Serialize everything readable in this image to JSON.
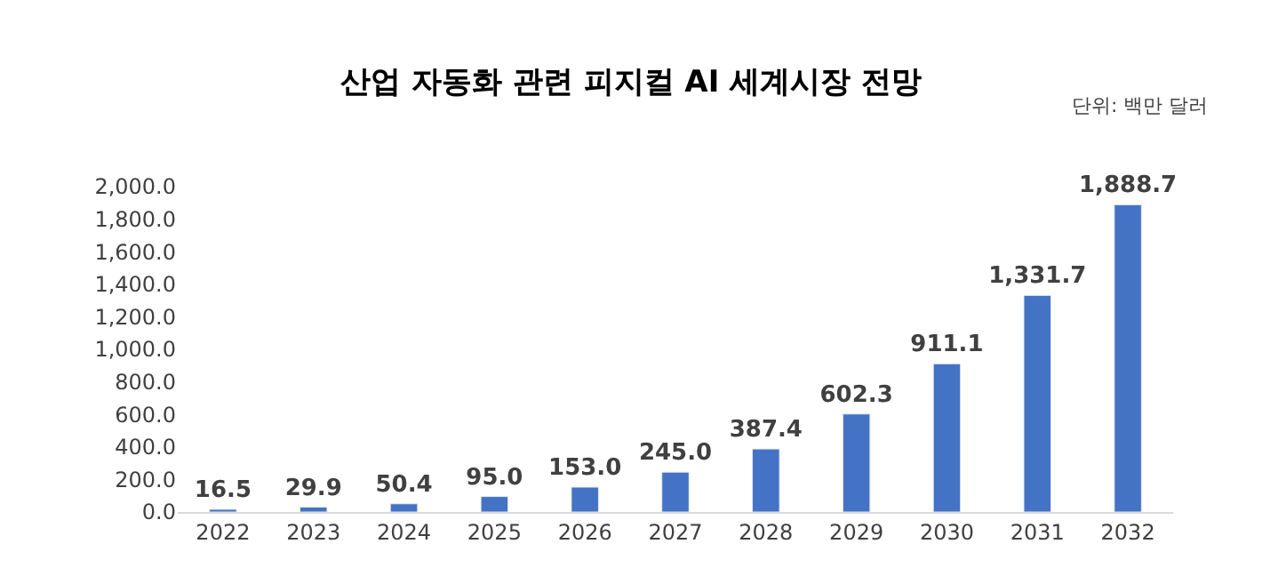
{
  "chart_data": {
    "type": "bar",
    "title": "산업 자동화 관련 피지컬 AI 세계시장 전망",
    "annotations": [
      "단위: 백만 달러"
    ],
    "categories": [
      "2022",
      "2023",
      "2024",
      "2025",
      "2026",
      "2027",
      "2028",
      "2029",
      "2030",
      "2031",
      "2032"
    ],
    "values": [
      16.5,
      29.9,
      50.4,
      95.0,
      153.0,
      245.0,
      387.4,
      602.3,
      911.1,
      1331.7,
      1888.7
    ],
    "value_labels": [
      "16.5",
      "29.9",
      "50.4",
      "95.0",
      "153.0",
      "245.0",
      "387.4",
      "602.3",
      "911.1",
      "1,331.7",
      "1,888.7"
    ],
    "color": "#4472c4",
    "ylim": [
      0,
      2000
    ],
    "yticks": [
      {
        "value": 0,
        "label": "0.0"
      },
      {
        "value": 200,
        "label": "200.0"
      },
      {
        "value": 400,
        "label": "400.0"
      },
      {
        "value": 600,
        "label": "600.0"
      },
      {
        "value": 800,
        "label": "800.0"
      },
      {
        "value": 1000,
        "label": "1,000.0"
      },
      {
        "value": 1200,
        "label": "1,200.0"
      },
      {
        "value": 1400,
        "label": "1,400.0"
      },
      {
        "value": 1600,
        "label": "1,600.0"
      },
      {
        "value": 1800,
        "label": "1,800.0"
      },
      {
        "value": 2000,
        "label": "2,000.0"
      }
    ],
    "legend": false
  }
}
